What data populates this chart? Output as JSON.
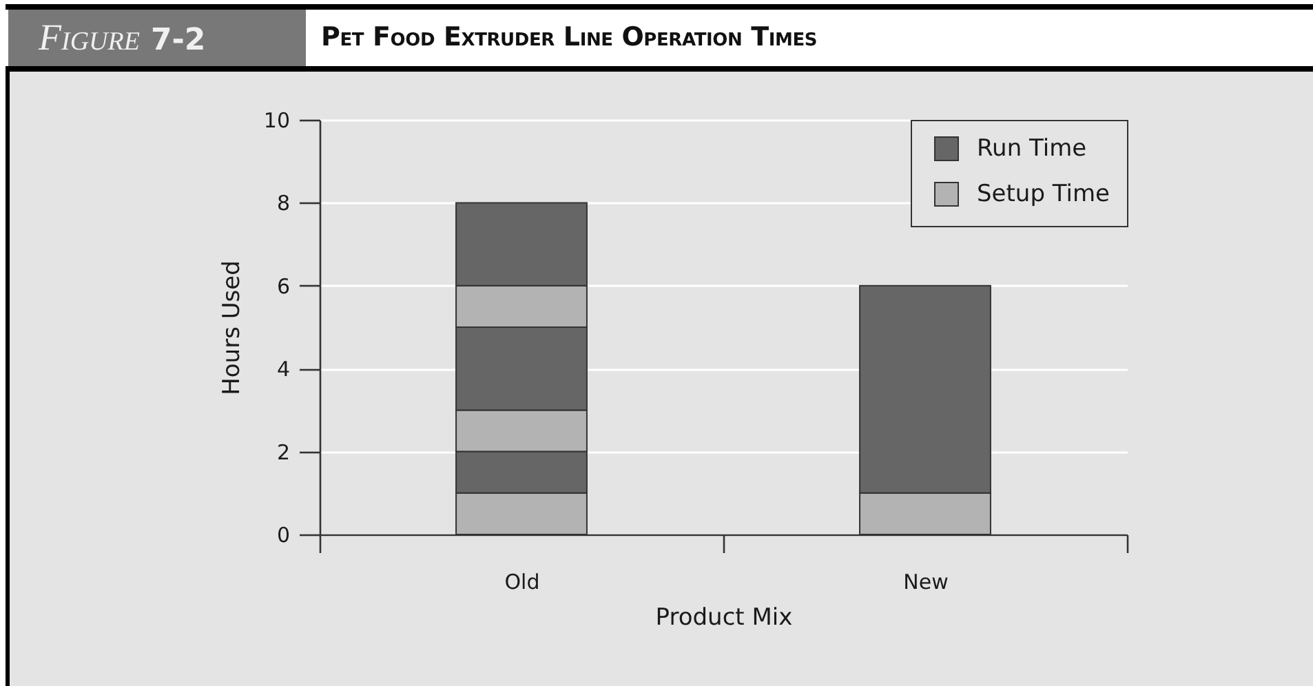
{
  "chart_data": {
    "type": "bar",
    "title": "Pet Food Extruder Line Operation Times",
    "annotations": [
      "Figure 7-2"
    ],
    "xlabel": "Product Mix",
    "ylabel": "Hours Used",
    "categories": [
      "Old",
      "New"
    ],
    "series": [
      {
        "name": "Setup Time",
        "color": "#b3b3b3",
        "values": [
          1,
          1
        ]
      },
      {
        "name": "Run Time",
        "color": "#666666",
        "values": [
          1,
          5
        ]
      },
      {
        "color": "#b3b3b3",
        "values": [
          1,
          null
        ]
      },
      {
        "color": "#666666",
        "values": [
          2,
          null
        ]
      },
      {
        "color": "#b3b3b3",
        "values": [
          1,
          null
        ]
      },
      {
        "color": "#666666",
        "values": [
          2,
          null
        ]
      }
    ],
    "stacked": true,
    "ylim": [
      0,
      10
    ],
    "yticks": [
      0,
      2,
      4,
      6,
      8,
      10
    ],
    "grid": "y",
    "legend": "top right"
  }
}
